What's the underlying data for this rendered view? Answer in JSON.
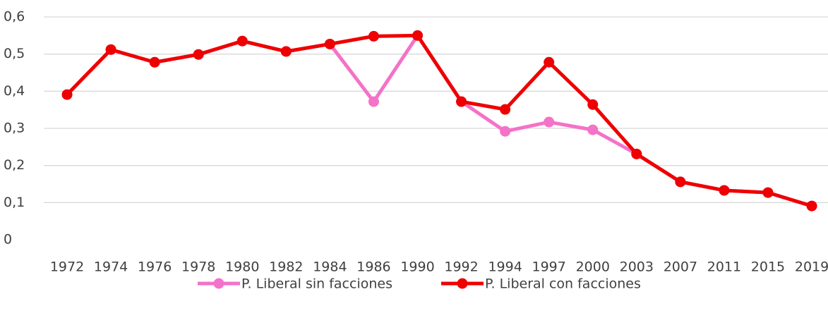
{
  "chart_data": {
    "type": "line",
    "categories": [
      "1972",
      "1974",
      "1976",
      "1978",
      "1980",
      "1982",
      "1984",
      "1986",
      "1990",
      "1992",
      "1994",
      "1997",
      "2000",
      "2003",
      "2007",
      "2011",
      "2015",
      "2019"
    ],
    "series": [
      {
        "name": "P. Liberal sin facciones",
        "color": "#f472c8",
        "values": [
          0.391,
          0.512,
          0.478,
          0.499,
          0.535,
          0.507,
          0.527,
          0.372,
          0.55,
          0.372,
          0.292,
          0.317,
          0.296,
          0.231,
          0.156,
          0.133,
          0.127,
          0.091
        ]
      },
      {
        "name": "P. Liberal con facciones",
        "color": "#ee0000",
        "values": [
          0.391,
          0.512,
          0.478,
          0.499,
          0.535,
          0.507,
          0.527,
          0.548,
          0.55,
          0.372,
          0.351,
          0.478,
          0.364,
          0.231,
          0.156,
          0.133,
          0.127,
          0.091
        ]
      }
    ],
    "ylim": [
      0,
      0.6
    ],
    "yticks": [
      0,
      {
        "value": 0.1,
        "label": "0,1"
      },
      {
        "value": 0.2,
        "label": "0,2"
      },
      {
        "value": 0.3,
        "label": "0,3"
      },
      {
        "value": 0.4,
        "label": "0,4"
      },
      {
        "value": 0.5,
        "label": "0,5"
      },
      {
        "value": 0.6,
        "label": "0,6"
      }
    ],
    "grid": true,
    "legend": "bottom"
  }
}
